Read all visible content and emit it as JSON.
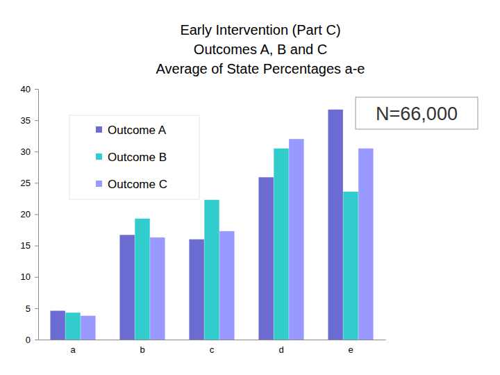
{
  "chart_data": {
    "type": "bar",
    "title": [
      "Early Intervention (Part C)",
      "Outcomes A, B and C",
      "Average of State Percentages a-e"
    ],
    "annotations": [
      "N=66,000"
    ],
    "categories": [
      "a",
      "b",
      "c",
      "d",
      "e"
    ],
    "series": [
      {
        "name": "Outcome A",
        "color": "#6b6bd1",
        "values": [
          4.6,
          16.7,
          16.0,
          25.9,
          36.7
        ]
      },
      {
        "name": "Outcome B",
        "color": "#33cccc",
        "values": [
          4.3,
          19.3,
          22.3,
          30.5,
          23.6
        ]
      },
      {
        "name": "Outcome C",
        "color": "#9999ff",
        "values": [
          3.8,
          16.3,
          17.3,
          32.0,
          30.5
        ]
      }
    ],
    "ylim": [
      0,
      40
    ],
    "yticks": [
      0,
      5,
      10,
      15,
      20,
      25,
      30,
      35,
      40
    ],
    "grid": false,
    "legend": "upper left"
  }
}
